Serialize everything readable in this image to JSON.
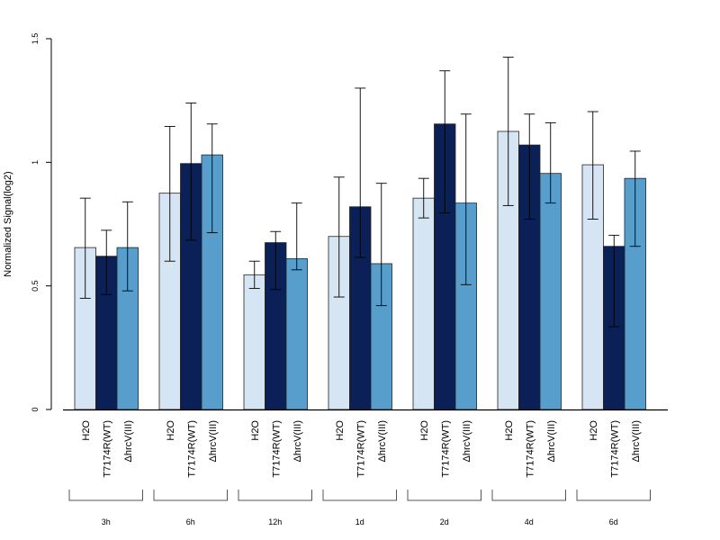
{
  "chart_data": {
    "type": "bar",
    "title": "",
    "xlabel": "",
    "ylabel": "Normalized Signal(log2)",
    "ylim": [
      0,
      1.5
    ],
    "yticks": [
      0,
      0.5,
      1,
      1.5
    ],
    "ytick_labels": [
      "0",
      "0.5",
      "1",
      "1.5"
    ],
    "groups": [
      "3h",
      "6h",
      "12h",
      "1d",
      "2d",
      "4d",
      "6d"
    ],
    "series": [
      {
        "name": "H2O",
        "color": "#d6e5f4",
        "values": [
          0.655,
          0.875,
          0.545,
          0.7,
          0.855,
          1.125,
          0.99
        ],
        "err_low": [
          0.45,
          0.6,
          0.49,
          0.455,
          0.775,
          0.825,
          0.77
        ],
        "err_high": [
          0.855,
          1.145,
          0.6,
          0.94,
          0.935,
          1.425,
          1.205
        ]
      },
      {
        "name": "T7174R(WT)",
        "color": "#0a2056",
        "values": [
          0.62,
          0.995,
          0.675,
          0.82,
          1.155,
          1.07,
          0.66
        ],
        "err_low": [
          0.465,
          0.685,
          0.485,
          0.615,
          0.795,
          0.77,
          0.335
        ],
        "err_high": [
          0.725,
          1.24,
          0.72,
          1.3,
          1.37,
          1.195,
          0.705
        ]
      },
      {
        "name": "ΔhrcV(III)",
        "color": "#589ecd",
        "values": [
          0.655,
          1.03,
          0.61,
          0.59,
          0.835,
          0.955,
          0.935
        ],
        "err_low": [
          0.48,
          0.715,
          0.565,
          0.42,
          0.505,
          0.835,
          0.66
        ],
        "err_high": [
          0.84,
          1.155,
          0.835,
          0.915,
          1.195,
          1.16,
          1.045
        ]
      }
    ],
    "grid": false,
    "legend": "none"
  }
}
